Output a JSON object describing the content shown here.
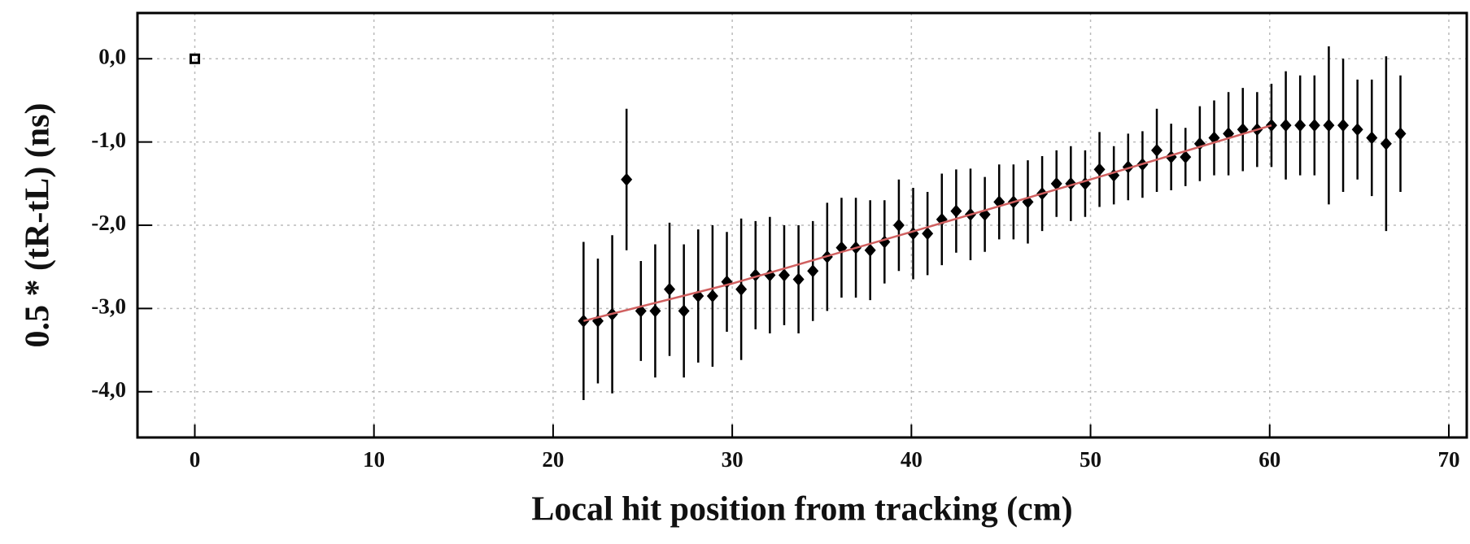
{
  "chart_data": {
    "type": "scatter",
    "xlabel": "Local hit position from tracking (cm)",
    "ylabel": "0.5 * (tR-tL) (ns)",
    "xlim": [
      -3.2,
      71.0
    ],
    "ylim": [
      -4.55,
      0.55
    ],
    "xticks": [
      0,
      10,
      20,
      30,
      40,
      50,
      60,
      70
    ],
    "yticks": [
      {
        "value": 0,
        "label": "0,0"
      },
      {
        "value": -1,
        "label": "-1,0"
      },
      {
        "value": -2,
        "label": "-2,0"
      },
      {
        "value": -3,
        "label": "-3,0"
      },
      {
        "value": -4,
        "label": "-4,0"
      }
    ],
    "grid": true,
    "series": [
      {
        "color": "#000000",
        "marker": "diamond",
        "x": [
          21.7,
          22.5,
          23.3,
          24.1,
          24.9,
          25.7,
          26.5,
          27.3,
          28.1,
          28.9,
          29.7,
          30.5,
          31.3,
          32.1,
          32.9,
          33.7,
          34.5,
          35.3,
          36.1,
          36.9,
          37.7,
          38.5,
          39.3,
          40.1,
          40.9,
          41.7,
          42.5,
          43.3,
          44.1,
          44.9,
          45.7,
          46.5,
          47.3,
          48.1,
          48.9,
          49.7,
          50.5,
          51.3,
          52.1,
          52.9,
          53.7,
          54.5,
          55.3,
          56.1,
          56.9,
          57.7,
          58.5,
          59.3,
          60.1,
          60.9,
          61.7,
          62.5,
          63.3,
          64.1,
          64.9,
          65.7,
          66.5,
          67.3
        ],
        "values": [
          -3.15,
          -3.15,
          -3.07,
          -1.45,
          -3.03,
          -3.03,
          -2.77,
          -3.03,
          -2.85,
          -2.85,
          -2.68,
          -2.77,
          -2.6,
          -2.6,
          -2.6,
          -2.65,
          -2.55,
          -2.38,
          -2.27,
          -2.27,
          -2.3,
          -2.2,
          -2.0,
          -2.1,
          -2.1,
          -1.93,
          -1.83,
          -1.87,
          -1.87,
          -1.72,
          -1.72,
          -1.72,
          -1.62,
          -1.5,
          -1.5,
          -1.5,
          -1.33,
          -1.4,
          -1.3,
          -1.27,
          -1.1,
          -1.18,
          -1.18,
          -1.02,
          -0.95,
          -0.9,
          -0.85,
          -0.85,
          -0.8,
          -0.8,
          -0.8,
          -0.8,
          -0.8,
          -0.8,
          -0.85,
          -0.95,
          -1.02,
          -0.9
        ],
        "errors": [
          0.95,
          0.75,
          0.95,
          0.85,
          0.6,
          0.8,
          0.8,
          0.8,
          0.8,
          0.85,
          0.6,
          0.85,
          0.65,
          0.7,
          0.6,
          0.65,
          0.6,
          0.65,
          0.6,
          0.6,
          0.6,
          0.5,
          0.55,
          0.55,
          0.5,
          0.55,
          0.5,
          0.55,
          0.45,
          0.45,
          0.45,
          0.5,
          0.45,
          0.4,
          0.45,
          0.4,
          0.45,
          0.35,
          0.4,
          0.4,
          0.5,
          0.4,
          0.35,
          0.45,
          0.45,
          0.5,
          0.5,
          0.45,
          0.5,
          0.65,
          0.6,
          0.6,
          0.95,
          0.8,
          0.6,
          0.7,
          1.05,
          0.7
        ]
      },
      {
        "color": "#000000",
        "marker": "open-square",
        "x": [
          0
        ],
        "values": [
          0
        ]
      },
      {
        "color": "#d06060",
        "marker": "line",
        "x": [
          21.7,
          30.0,
          40.0,
          50.0,
          60.1
        ],
        "values": [
          -3.15,
          -2.7,
          -2.08,
          -1.45,
          -0.8
        ]
      }
    ]
  }
}
